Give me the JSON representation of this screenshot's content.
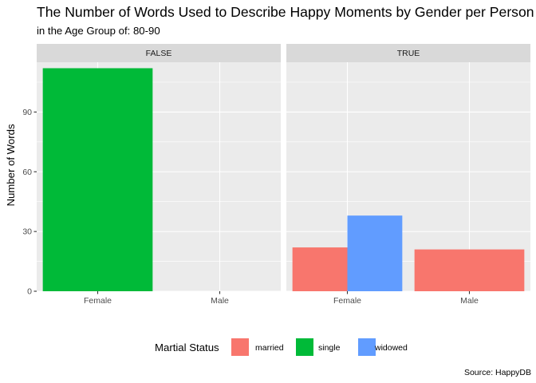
{
  "chart_data": {
    "type": "bar",
    "title": "The Number of Words Used to Describe Happy Moments by Gender per Person",
    "subtitle": "in the Age Group of: 80-90",
    "caption": "Source: HappyDB",
    "ylabel": "Number of Words",
    "xlabel": "",
    "ylim": [
      0,
      115
    ],
    "yticks": [
      0,
      30,
      60,
      90
    ],
    "grid": true,
    "categories": [
      "Female",
      "Male"
    ],
    "facets": [
      {
        "label": "FALSE",
        "bars": [
          {
            "category": "Female",
            "group": "single",
            "value": 112
          }
        ]
      },
      {
        "label": "TRUE",
        "bars": [
          {
            "category": "Female",
            "group": "married",
            "value": 22
          },
          {
            "category": "Female",
            "group": "widowed",
            "value": 38
          },
          {
            "category": "Male",
            "group": "married",
            "value": 21
          }
        ]
      }
    ],
    "legend": {
      "title": "Martial Status",
      "position": "bottom",
      "entries": [
        {
          "name": "married",
          "color": "#F8766D"
        },
        {
          "name": "single",
          "color": "#00BA38"
        },
        {
          "name": "widowed",
          "color": "#619CFF"
        }
      ]
    }
  }
}
